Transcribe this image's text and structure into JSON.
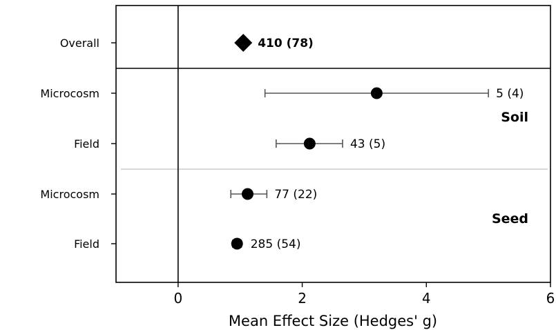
{
  "chart_data": {
    "type": "scatter",
    "title": "",
    "xlabel": "Mean Effect Size (Hedges' g)",
    "ylabel": "",
    "xlim": [
      -1,
      6
    ],
    "xticks": [
      0,
      2,
      4,
      6
    ],
    "xtick_labels": [
      "0",
      "2",
      "4",
      "6"
    ],
    "grid": false,
    "rows": [
      {
        "label": "Overall",
        "group": "",
        "mean": 1.05,
        "ci": [
          1.05,
          1.05
        ],
        "annotation": "410 (78)",
        "marker": "diamond",
        "bold": true
      },
      {
        "label": "Microcosm",
        "group": "Soil",
        "mean": 3.2,
        "ci": [
          1.4,
          5.0
        ],
        "annotation": "5 (4)",
        "marker": "circle",
        "bold": false
      },
      {
        "label": "Field",
        "group": "Soil",
        "mean": 2.12,
        "ci": [
          1.58,
          2.65
        ],
        "annotation": "43 (5)",
        "marker": "circle",
        "bold": false
      },
      {
        "label": "Microcosm",
        "group": "Seed",
        "mean": 1.12,
        "ci": [
          0.85,
          1.43
        ],
        "annotation": "77 (22)",
        "marker": "circle",
        "bold": false
      },
      {
        "label": "Field",
        "group": "Seed",
        "mean": 0.95,
        "ci": [
          0.88,
          1.02
        ],
        "annotation": "285 (54)",
        "marker": "circle",
        "bold": false
      }
    ],
    "groups": [
      "Soil",
      "Seed"
    ],
    "colors": {
      "ink": "#000000",
      "separator": "#b0b0b0",
      "whisker": "#555555"
    }
  }
}
